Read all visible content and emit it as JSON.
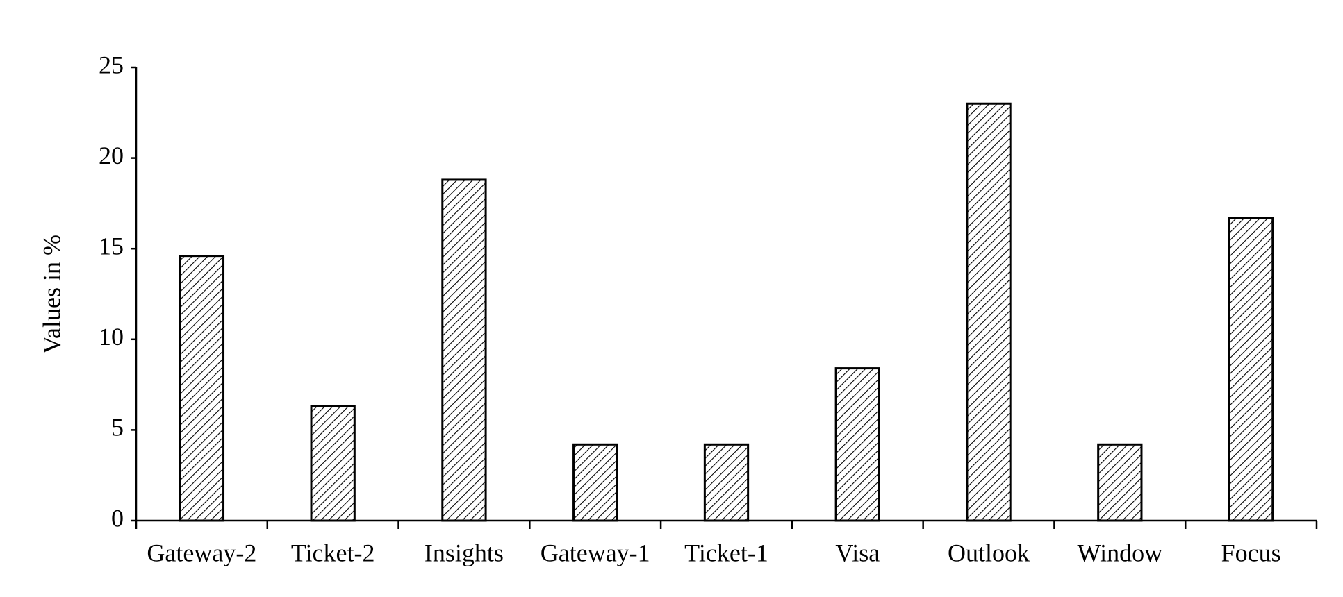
{
  "chart_data": {
    "type": "bar",
    "ylabel": "Values in %",
    "categories": [
      "Gateway-2",
      "Ticket-2",
      "Insights",
      "Gateway-1",
      "Ticket-1",
      "Visa",
      "Outlook",
      "Window",
      "Focus"
    ],
    "values": [
      14.6,
      6.3,
      18.8,
      4.2,
      4.2,
      8.4,
      23.0,
      4.2,
      16.7
    ],
    "color": "#000000",
    "ylim": [
      0,
      25
    ],
    "yticks": [
      0,
      5,
      10,
      15,
      20,
      25
    ],
    "grid": false
  }
}
